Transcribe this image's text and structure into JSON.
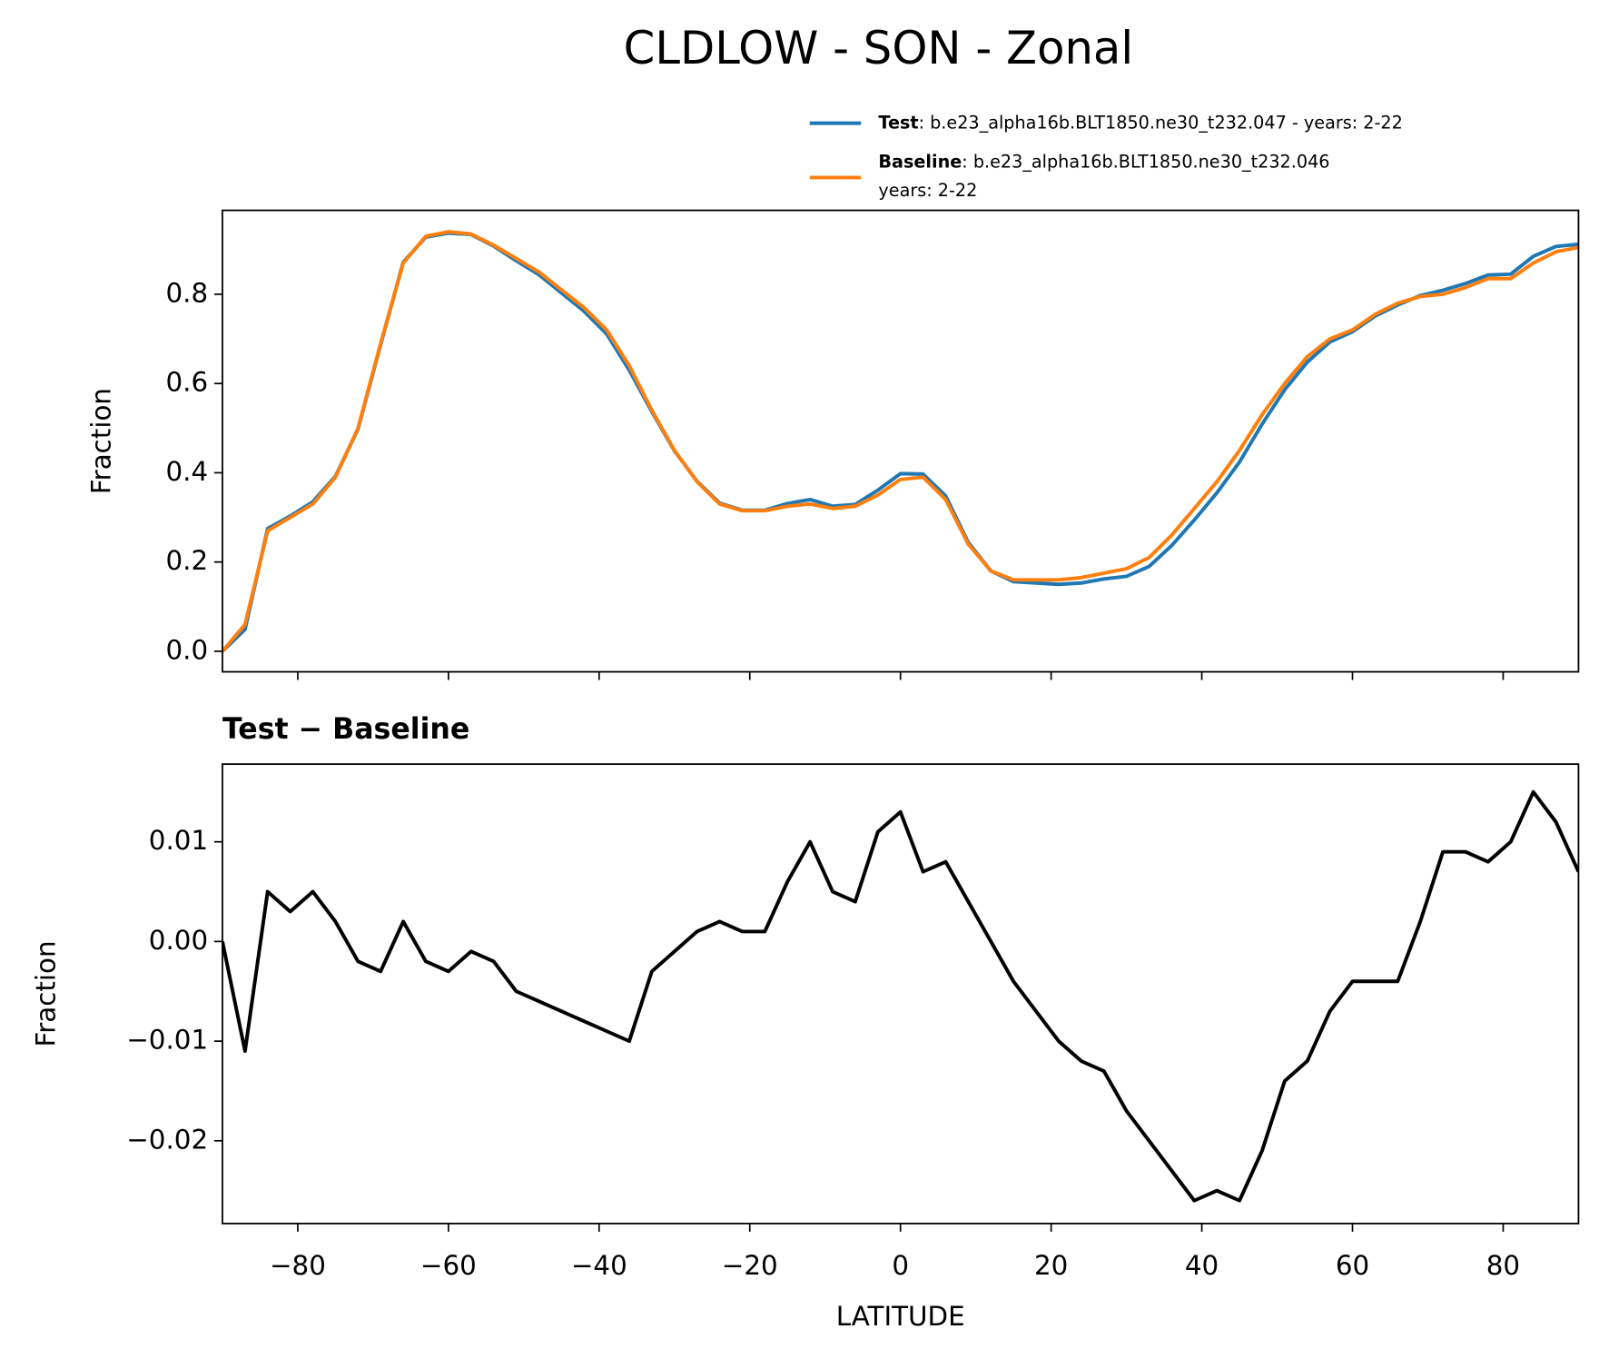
{
  "chart_data": [
    {
      "type": "line",
      "title": "CLDLOW - SON - Zonal",
      "ylabel": "Fraction",
      "x": [
        -90,
        -87,
        -84,
        -81,
        -78,
        -75,
        -72,
        -69,
        -66,
        -63,
        -60,
        -57,
        -54,
        -51,
        -48,
        -45,
        -42,
        -39,
        -36,
        -33,
        -30,
        -27,
        -24,
        -21,
        -18,
        -15,
        -12,
        -9,
        -6,
        -3,
        0,
        3,
        6,
        9,
        12,
        15,
        18,
        21,
        24,
        27,
        30,
        33,
        36,
        39,
        42,
        45,
        48,
        51,
        54,
        57,
        60,
        63,
        66,
        69,
        72,
        75,
        78,
        81,
        84,
        87,
        90
      ],
      "series": [
        {
          "name": "Test",
          "label_lines": [
            ": b.e23_alpha16b.BLT1850.ne30_t232.047 - years: 2-22"
          ],
          "color": "#1f77b4",
          "values": [
            0.0,
            0.049,
            0.275,
            0.303,
            0.335,
            0.392,
            0.498,
            0.687,
            0.872,
            0.928,
            0.937,
            0.934,
            0.908,
            0.875,
            0.844,
            0.803,
            0.762,
            0.711,
            0.63,
            0.537,
            0.449,
            0.381,
            0.332,
            0.316,
            0.316,
            0.331,
            0.34,
            0.325,
            0.329,
            0.361,
            0.398,
            0.397,
            0.348,
            0.244,
            0.18,
            0.156,
            0.153,
            0.15,
            0.153,
            0.162,
            0.168,
            0.19,
            0.237,
            0.294,
            0.355,
            0.424,
            0.509,
            0.586,
            0.648,
            0.693,
            0.716,
            0.751,
            0.776,
            0.797,
            0.809,
            0.824,
            0.843,
            0.845,
            0.885,
            0.907,
            0.912
          ]
        },
        {
          "name": "Baseline",
          "label_lines": [
            ": b.e23_alpha16b.BLT1850.ne30_t232.046",
            "years: 2-22"
          ],
          "color": "#ff7f0e",
          "values": [
            0.0,
            0.06,
            0.27,
            0.3,
            0.33,
            0.39,
            0.5,
            0.69,
            0.87,
            0.93,
            0.94,
            0.935,
            0.91,
            0.88,
            0.85,
            0.81,
            0.77,
            0.72,
            0.64,
            0.54,
            0.45,
            0.38,
            0.33,
            0.315,
            0.315,
            0.325,
            0.33,
            0.32,
            0.325,
            0.35,
            0.385,
            0.39,
            0.34,
            0.24,
            0.18,
            0.16,
            0.16,
            0.16,
            0.165,
            0.175,
            0.185,
            0.21,
            0.26,
            0.32,
            0.38,
            0.45,
            0.53,
            0.6,
            0.66,
            0.7,
            0.72,
            0.755,
            0.78,
            0.795,
            0.8,
            0.815,
            0.835,
            0.835,
            0.87,
            0.895,
            0.905
          ]
        }
      ],
      "xlim": [
        -90,
        90
      ],
      "xticks": [
        -80,
        -60,
        -40,
        -20,
        0,
        20,
        40,
        60,
        80
      ],
      "ylim": [
        -0.046,
        0.988
      ],
      "yticks": [
        {
          "value": 0,
          "label": "0.0"
        },
        0.2,
        0.4,
        0.6,
        0.8
      ]
    },
    {
      "type": "line",
      "title": "Test − Baseline",
      "ylabel": "Fraction",
      "xlabel": "LATITUDE",
      "color": "#000000",
      "x": [
        -90,
        -87,
        -84,
        -81,
        -78,
        -75,
        -72,
        -69,
        -66,
        -63,
        -60,
        -57,
        -54,
        -51,
        -48,
        -45,
        -42,
        -39,
        -36,
        -33,
        -30,
        -27,
        -24,
        -21,
        -18,
        -15,
        -12,
        -9,
        -6,
        -3,
        0,
        3,
        6,
        9,
        12,
        15,
        18,
        21,
        24,
        27,
        30,
        33,
        36,
        39,
        42,
        45,
        48,
        51,
        54,
        57,
        60,
        63,
        66,
        69,
        72,
        75,
        78,
        81,
        84,
        87,
        90
      ],
      "values": [
        0,
        -0.011,
        0.005,
        0.003,
        0.005,
        0.002,
        -0.002,
        -0.003,
        0.002,
        -0.002,
        -0.003,
        -0.001,
        -0.002,
        -0.005,
        -0.006,
        -0.007,
        -0.008,
        -0.009,
        -0.01,
        -0.003,
        -0.001,
        0.001,
        0.002,
        0.001,
        0.001,
        0.006,
        0.01,
        0.005,
        0.004,
        0.011,
        0.013,
        0.007,
        0.008,
        0.004,
        0.0,
        -0.004,
        -0.007,
        -0.01,
        -0.012,
        -0.013,
        -0.017,
        -0.02,
        -0.023,
        -0.026,
        -0.025,
        -0.026,
        -0.021,
        -0.014,
        -0.012,
        -0.007,
        -0.004,
        -0.004,
        -0.004,
        0.002,
        0.009,
        0.009,
        0.008,
        0.01,
        0.015,
        0.012,
        0.007
      ],
      "xlim": [
        -90,
        90
      ],
      "xticks": [
        {
          "value": -80,
          "label": "−80"
        },
        {
          "value": -60,
          "label": "−60"
        },
        {
          "value": -40,
          "label": "−40"
        },
        {
          "value": -20,
          "label": "−20"
        },
        0,
        20,
        40,
        60,
        80
      ],
      "ylim": [
        -0.0283,
        0.0178
      ],
      "yticks": [
        {
          "value": -0.02,
          "label": "−0.02"
        },
        {
          "value": -0.01,
          "label": "−0.01"
        },
        {
          "value": 0,
          "label": "0.00"
        },
        0.01
      ]
    }
  ]
}
